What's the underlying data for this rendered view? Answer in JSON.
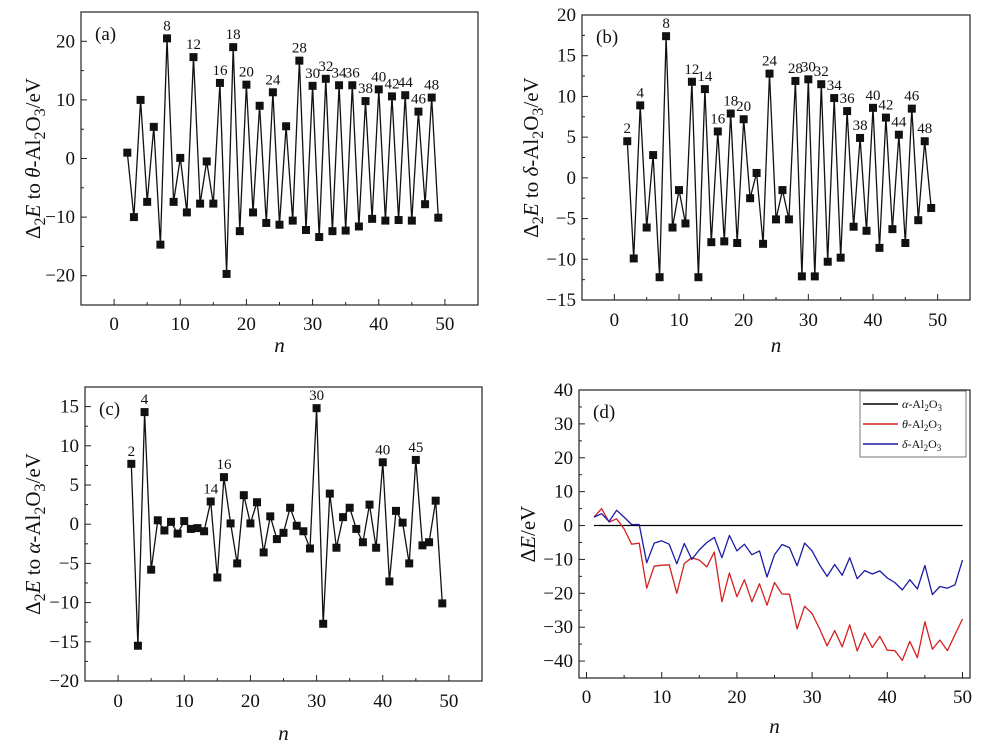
{
  "chart_data": [
    {
      "panel": "a",
      "type": "line",
      "panel_label": "(a)",
      "title": "",
      "xlabel": "n",
      "ylabel": "Δ2E to θ-Al2O3/eV",
      "xlim": [
        -5,
        55
      ],
      "ylim": [
        -25,
        25
      ],
      "xticks": [
        0,
        10,
        20,
        30,
        40,
        50
      ],
      "yticks": [
        -20,
        -10,
        0,
        10,
        20
      ],
      "xtick_labels": [
        "0",
        "10",
        "20",
        "30",
        "40",
        "50"
      ],
      "ytick_labels": [
        "−20",
        "−10",
        "0",
        "10",
        "20"
      ],
      "grid": false,
      "marker": "square",
      "color": "#111111",
      "x": [
        2,
        3,
        4,
        5,
        6,
        7,
        8,
        9,
        10,
        11,
        12,
        13,
        14,
        15,
        16,
        17,
        18,
        19,
        20,
        21,
        22,
        23,
        24,
        25,
        26,
        27,
        28,
        29,
        30,
        31,
        32,
        33,
        34,
        35,
        36,
        37,
        38,
        39,
        40,
        41,
        42,
        43,
        44,
        45,
        46,
        47,
        48,
        49
      ],
      "y": [
        1.0,
        -10.0,
        10.0,
        -7.4,
        5.4,
        -14.7,
        20.5,
        -7.4,
        0.1,
        -9.2,
        17.3,
        -7.7,
        -0.5,
        -7.7,
        12.9,
        -19.7,
        19.0,
        -12.4,
        12.6,
        -9.2,
        9.0,
        -11.0,
        11.3,
        -11.3,
        5.5,
        -10.6,
        16.7,
        -12.2,
        12.4,
        -13.4,
        13.6,
        -12.4,
        12.5,
        -12.3,
        12.5,
        -11.6,
        9.8,
        -10.3,
        11.8,
        -10.6,
        10.6,
        -10.5,
        10.8,
        -10.6,
        8.0,
        -7.8,
        10.4,
        -10.1
      ],
      "annotations": [
        {
          "label": "8",
          "x": 8
        },
        {
          "label": "12",
          "x": 12
        },
        {
          "label": "16",
          "x": 16
        },
        {
          "label": "18",
          "x": 18
        },
        {
          "label": "20",
          "x": 20
        },
        {
          "label": "24",
          "x": 24
        },
        {
          "label": "28",
          "x": 28
        },
        {
          "label": "30",
          "x": 30
        },
        {
          "label": "32",
          "x": 32
        },
        {
          "label": "34",
          "x": 34
        },
        {
          "label": "36",
          "x": 36
        },
        {
          "label": "38",
          "x": 38
        },
        {
          "label": "40",
          "x": 40
        },
        {
          "label": "42",
          "x": 42
        },
        {
          "label": "44",
          "x": 44
        },
        {
          "label": "46",
          "x": 46
        },
        {
          "label": "48",
          "x": 48
        }
      ]
    },
    {
      "panel": "b",
      "type": "line",
      "panel_label": "(b)",
      "title": "",
      "xlabel": "n",
      "ylabel": "Δ2E to δ-Al2O3/eV",
      "xlim": [
        -5,
        55
      ],
      "ylim": [
        -15,
        20
      ],
      "xticks": [
        0,
        10,
        20,
        30,
        40,
        50
      ],
      "yticks": [
        -15,
        -10,
        -5,
        0,
        5,
        10,
        15,
        20
      ],
      "xtick_labels": [
        "0",
        "10",
        "20",
        "30",
        "40",
        "50"
      ],
      "ytick_labels": [
        "−15",
        "−10",
        "−5",
        "0",
        "5",
        "10",
        "15",
        "20"
      ],
      "grid": false,
      "marker": "square",
      "color": "#111111",
      "x": [
        2,
        3,
        4,
        5,
        6,
        7,
        8,
        9,
        10,
        11,
        12,
        13,
        14,
        15,
        16,
        17,
        18,
        19,
        20,
        21,
        22,
        23,
        24,
        25,
        26,
        27,
        28,
        29,
        30,
        31,
        32,
        33,
        34,
        35,
        36,
        37,
        38,
        39,
        40,
        41,
        42,
        43,
        44,
        45,
        46,
        47,
        48,
        49
      ],
      "y": [
        4.5,
        -9.9,
        8.9,
        -6.1,
        2.8,
        -12.2,
        17.4,
        -6.1,
        -1.5,
        -5.6,
        11.8,
        -12.2,
        10.9,
        -7.9,
        5.7,
        -7.8,
        7.9,
        -8.0,
        7.2,
        -2.5,
        0.6,
        -8.1,
        12.8,
        -5.1,
        -1.5,
        -5.1,
        11.9,
        -12.1,
        12.1,
        -12.1,
        11.5,
        -10.3,
        9.8,
        -9.8,
        8.2,
        -6.0,
        4.9,
        -6.5,
        8.6,
        -8.6,
        7.4,
        -6.3,
        5.3,
        -8.0,
        8.5,
        -5.2,
        4.5,
        -3.7
      ],
      "annotations": [
        {
          "label": "2",
          "x": 2
        },
        {
          "label": "4",
          "x": 4
        },
        {
          "label": "8",
          "x": 8
        },
        {
          "label": "12",
          "x": 12
        },
        {
          "label": "14",
          "x": 14
        },
        {
          "label": "16",
          "x": 16
        },
        {
          "label": "18",
          "x": 18
        },
        {
          "label": "20",
          "x": 20
        },
        {
          "label": "24",
          "x": 24
        },
        {
          "label": "28",
          "x": 28
        },
        {
          "label": "30",
          "x": 30
        },
        {
          "label": "32",
          "x": 32
        },
        {
          "label": "34",
          "x": 34
        },
        {
          "label": "36",
          "x": 36
        },
        {
          "label": "38",
          "x": 38
        },
        {
          "label": "40",
          "x": 40
        },
        {
          "label": "42",
          "x": 42
        },
        {
          "label": "44",
          "x": 44
        },
        {
          "label": "46",
          "x": 46
        },
        {
          "label": "48",
          "x": 48
        }
      ]
    },
    {
      "panel": "c",
      "type": "line",
      "panel_label": "(c)",
      "title": "",
      "xlabel": "n",
      "ylabel": "Δ2E to α-Al2O3/eV",
      "xlim": [
        -5,
        55
      ],
      "ylim": [
        -20,
        17.5
      ],
      "xticks": [
        0,
        10,
        20,
        30,
        40,
        50
      ],
      "yticks": [
        -20,
        -15,
        -10,
        -5,
        0,
        5,
        10,
        15
      ],
      "xtick_labels": [
        "0",
        "10",
        "20",
        "30",
        "40",
        "50"
      ],
      "ytick_labels": [
        "−20",
        "−15",
        "−10",
        "−5",
        "0",
        "5",
        "10",
        "15"
      ],
      "grid": false,
      "marker": "square",
      "color": "#111111",
      "x": [
        2,
        3,
        4,
        5,
        6,
        7,
        8,
        9,
        10,
        11,
        12,
        13,
        14,
        15,
        16,
        17,
        18,
        19,
        20,
        21,
        22,
        23,
        24,
        25,
        26,
        27,
        28,
        29,
        30,
        31,
        32,
        33,
        34,
        35,
        36,
        37,
        38,
        39,
        40,
        41,
        42,
        43,
        44,
        45,
        46,
        47,
        48,
        49
      ],
      "y": [
        7.7,
        -15.5,
        14.3,
        -5.8,
        0.5,
        -0.8,
        0.3,
        -1.2,
        0.4,
        -0.6,
        -0.5,
        -0.9,
        2.9,
        -6.8,
        6.0,
        0.1,
        -5.0,
        3.7,
        0.1,
        2.8,
        -3.6,
        1.0,
        -1.9,
        -1.1,
        2.1,
        -0.2,
        -0.9,
        -3.1,
        14.8,
        -12.7,
        3.9,
        -3.0,
        0.9,
        2.1,
        -0.6,
        -2.3,
        2.5,
        -3.0,
        7.9,
        -7.3,
        1.7,
        0.2,
        -5.0,
        8.2,
        -2.7,
        -2.3,
        3.0,
        -10.1
      ],
      "annotations": [
        {
          "label": "2",
          "x": 2
        },
        {
          "label": "4",
          "x": 4
        },
        {
          "label": "14",
          "x": 14
        },
        {
          "label": "16",
          "x": 16
        },
        {
          "label": "30",
          "x": 30
        },
        {
          "label": "40",
          "x": 40
        },
        {
          "label": "45",
          "x": 45
        }
      ]
    },
    {
      "panel": "d",
      "type": "line",
      "panel_label": "(d)",
      "title": "",
      "xlabel": "n",
      "ylabel": "ΔE/eV",
      "xlim": [
        -1,
        51
      ],
      "ylim": [
        -45,
        40
      ],
      "xticks": [
        0,
        10,
        20,
        30,
        40,
        50
      ],
      "yticks": [
        -40,
        -30,
        -20,
        -10,
        0,
        10,
        20,
        30,
        40
      ],
      "xtick_labels": [
        "0",
        "10",
        "20",
        "30",
        "40",
        "50"
      ],
      "ytick_labels": [
        "−40",
        "−30",
        "−20",
        "−10",
        "0",
        "10",
        "20",
        "30",
        "40"
      ],
      "grid": false,
      "legend_position": "top-right",
      "x": [
        1,
        2,
        3,
        4,
        5,
        6,
        7,
        8,
        9,
        10,
        11,
        12,
        13,
        14,
        15,
        16,
        17,
        18,
        19,
        20,
        21,
        22,
        23,
        24,
        25,
        26,
        27,
        28,
        29,
        30,
        31,
        32,
        33,
        34,
        35,
        36,
        37,
        38,
        39,
        40,
        41,
        42,
        43,
        44,
        45,
        46,
        47,
        48,
        49,
        50
      ],
      "series": [
        {
          "name": "α-Al2O3",
          "legend_prefix": "α",
          "color": "#000000",
          "values": [
            0,
            0,
            0,
            0,
            0,
            0,
            0,
            0,
            0,
            0,
            0,
            0,
            0,
            0,
            0,
            0,
            0,
            0,
            0,
            0,
            0,
            0,
            0,
            0,
            0,
            0,
            0,
            0,
            0,
            0,
            0,
            0,
            0,
            0,
            0,
            0,
            0,
            0,
            0,
            0,
            0,
            0,
            0,
            0,
            0,
            0,
            0,
            0,
            0,
            0
          ]
        },
        {
          "name": "θ-Al2O3",
          "legend_prefix": "θ",
          "color": "#d42020",
          "values": [
            2.5,
            5.0,
            1.0,
            2.0,
            -1.0,
            -5.5,
            -5.2,
            -18.5,
            -12.0,
            -11.7,
            -11.6,
            -20.0,
            -11.2,
            -9.5,
            -10.2,
            -12.2,
            -7.8,
            -22.5,
            -14.0,
            -21.0,
            -16.0,
            -22.5,
            -17.2,
            -23.5,
            -16.8,
            -20.2,
            -20.3,
            -30.5,
            -23.8,
            -26.0,
            -30.5,
            -35.5,
            -31.0,
            -35.8,
            -29.3,
            -37.0,
            -31.7,
            -36.0,
            -32.7,
            -36.8,
            -36.9,
            -39.8,
            -34.2,
            -39.0,
            -28.4,
            -36.5,
            -33.8,
            -36.9,
            -32.2,
            -27.6
          ]
        },
        {
          "name": "δ-Al2O3",
          "legend_prefix": "δ",
          "color": "#1a1aa8",
          "values": [
            2.5,
            3.5,
            1.2,
            4.5,
            2.5,
            0.3,
            0.3,
            -11.0,
            -5.2,
            -4.5,
            -5.5,
            -11.3,
            -5.3,
            -10.0,
            -7.2,
            -5.0,
            -3.5,
            -9.5,
            -2.9,
            -7.5,
            -5.5,
            -8.6,
            -7.5,
            -15.2,
            -8.6,
            -5.6,
            -6.5,
            -11.9,
            -5.2,
            -7.5,
            -11.6,
            -15.0,
            -11.5,
            -14.7,
            -9.5,
            -15.7,
            -13.3,
            -14.3,
            -13.4,
            -15.5,
            -16.8,
            -19.0,
            -16.0,
            -18.7,
            -11.8,
            -20.4,
            -18.0,
            -18.5,
            -17.5,
            -10.2
          ]
        }
      ]
    }
  ]
}
